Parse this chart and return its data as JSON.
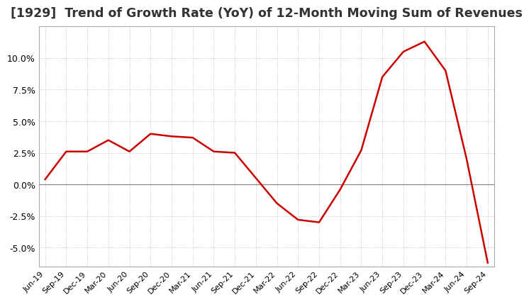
{
  "title": "[1929]  Trend of Growth Rate (YoY) of 12-Month Moving Sum of Revenues",
  "title_fontsize": 12.5,
  "line_color": "#cc0000",
  "background_color": "#ffffff",
  "grid_color": "#bbbbbb",
  "x_labels": [
    "Jun-19",
    "Sep-19",
    "Dec-19",
    "Mar-20",
    "Jun-20",
    "Sep-20",
    "Dec-20",
    "Mar-21",
    "Jun-21",
    "Sep-21",
    "Dec-21",
    "Mar-22",
    "Jun-22",
    "Sep-22",
    "Dec-22",
    "Mar-23",
    "Jun-23",
    "Sep-23",
    "Dec-23",
    "Mar-24",
    "Jun-24",
    "Sep-24"
  ],
  "y_values": [
    0.4,
    2.6,
    2.6,
    3.5,
    2.6,
    4.0,
    3.8,
    3.7,
    2.6,
    2.5,
    0.5,
    -1.5,
    -2.8,
    -3.0,
    -0.4,
    2.7,
    8.5,
    10.5,
    11.3,
    9.0,
    2.0,
    -6.2
  ],
  "ylim": [
    -6.5,
    12.5
  ],
  "yticks": [
    -5.0,
    -2.5,
    0.0,
    2.5,
    5.0,
    7.5,
    10.0
  ],
  "ylabel_fontsize": 9,
  "xlabel_fontsize": 8,
  "zero_line_color": "#888888",
  "border_color": "#aaaaaa"
}
